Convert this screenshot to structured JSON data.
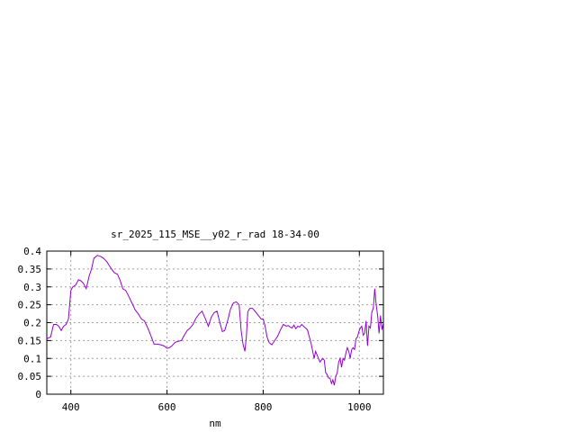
{
  "chart_data": {
    "type": "line",
    "title": "sr_2025_115_MSE__y02_r_rad 18-34-00",
    "xlabel": "nm",
    "ylabel": "",
    "xlim": [
      350,
      1050
    ],
    "ylim": [
      0,
      0.4
    ],
    "x_ticks": [
      400,
      600,
      800,
      1000
    ],
    "x_tick_labels": [
      "400",
      "600",
      "800",
      "1000"
    ],
    "y_ticks": [
      0,
      0.05,
      0.1,
      0.15,
      0.2,
      0.25,
      0.3,
      0.35,
      0.4
    ],
    "y_tick_labels": [
      "0",
      "0.05",
      "0.1",
      "0.15",
      "0.2",
      "0.25",
      "0.3",
      "0.35",
      "0.4"
    ],
    "grid": true,
    "line_color": "#9400d3",
    "series": [
      {
        "x": [
          350,
          358,
          364,
          370,
          375,
          380,
          385,
          390,
          395,
          400,
          404,
          410,
          416,
          420,
          426,
          432,
          438,
          443,
          448,
          455,
          462,
          468,
          475,
          482,
          490,
          497,
          502,
          508,
          514,
          520,
          527,
          534,
          540,
          547,
          553,
          560,
          566,
          573,
          580,
          587,
          594,
          600,
          605,
          610,
          617,
          624,
          630,
          636,
          642,
          648,
          654,
          660,
          667,
          673,
          680,
          686,
          692,
          698,
          704,
          710,
          715,
          720,
          726,
          732,
          738,
          744,
          750,
          754,
          758,
          762,
          765,
          768,
          772,
          778,
          784,
          790,
          796,
          800,
          804,
          808,
          812,
          818,
          824,
          830,
          836,
          842,
          848,
          852,
          856,
          860,
          864,
          868,
          872,
          876,
          880,
          884,
          888,
          892,
          896,
          900,
          903,
          906,
          909,
          912,
          915,
          918,
          921,
          924,
          927,
          930,
          933,
          936,
          939,
          942,
          945,
          948,
          951,
          954,
          957,
          960,
          963,
          966,
          969,
          972,
          975,
          978,
          981,
          984,
          987,
          990,
          993,
          996,
          999,
          1002,
          1005,
          1008,
          1011,
          1014,
          1017,
          1020,
          1023,
          1026,
          1029,
          1032,
          1035,
          1038,
          1041,
          1044,
          1047,
          1050
        ],
        "y": [
          0.155,
          0.16,
          0.195,
          0.195,
          0.19,
          0.178,
          0.19,
          0.195,
          0.21,
          0.29,
          0.3,
          0.305,
          0.32,
          0.318,
          0.31,
          0.295,
          0.33,
          0.35,
          0.38,
          0.388,
          0.385,
          0.38,
          0.37,
          0.355,
          0.34,
          0.335,
          0.32,
          0.295,
          0.29,
          0.275,
          0.255,
          0.235,
          0.225,
          0.21,
          0.205,
          0.185,
          0.165,
          0.14,
          0.14,
          0.138,
          0.135,
          0.128,
          0.13,
          0.135,
          0.145,
          0.148,
          0.15,
          0.165,
          0.178,
          0.185,
          0.195,
          0.212,
          0.225,
          0.232,
          0.21,
          0.19,
          0.215,
          0.228,
          0.232,
          0.2,
          0.175,
          0.178,
          0.205,
          0.238,
          0.255,
          0.258,
          0.25,
          0.18,
          0.14,
          0.12,
          0.16,
          0.23,
          0.24,
          0.24,
          0.23,
          0.22,
          0.21,
          0.21,
          0.19,
          0.16,
          0.145,
          0.138,
          0.15,
          0.162,
          0.18,
          0.195,
          0.19,
          0.192,
          0.188,
          0.185,
          0.193,
          0.183,
          0.19,
          0.188,
          0.195,
          0.19,
          0.185,
          0.18,
          0.16,
          0.14,
          0.12,
          0.1,
          0.12,
          0.11,
          0.1,
          0.09,
          0.095,
          0.1,
          0.095,
          0.06,
          0.055,
          0.045,
          0.045,
          0.03,
          0.04,
          0.025,
          0.05,
          0.06,
          0.09,
          0.1,
          0.075,
          0.1,
          0.095,
          0.115,
          0.13,
          0.12,
          0.1,
          0.125,
          0.13,
          0.125,
          0.155,
          0.16,
          0.175,
          0.185,
          0.19,
          0.165,
          0.17,
          0.205,
          0.135,
          0.19,
          0.185,
          0.23,
          0.24,
          0.295,
          0.25,
          0.22,
          0.17,
          0.22,
          0.18,
          0.2
        ]
      }
    ]
  }
}
